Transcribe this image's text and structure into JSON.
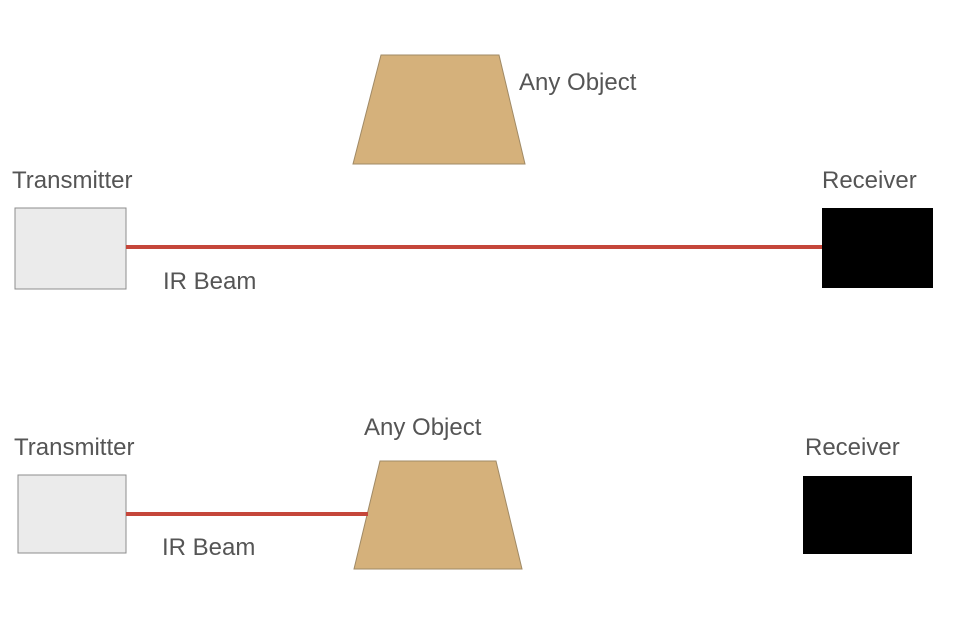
{
  "colors": {
    "transmitter_fill": "#ebebeb",
    "receiver_fill": "#000000",
    "object_fill": "#d5b17b",
    "beam": "#c5463a",
    "label_text": "#555555"
  },
  "scene_unblocked": {
    "object_label": "Any Object",
    "transmitter_label": "Transmitter",
    "receiver_label": "Receiver",
    "beam_label": "IR Beam"
  },
  "scene_blocked": {
    "object_label": "Any Object",
    "transmitter_label": "Transmitter",
    "receiver_label": "Receiver",
    "beam_label": "IR Beam"
  }
}
